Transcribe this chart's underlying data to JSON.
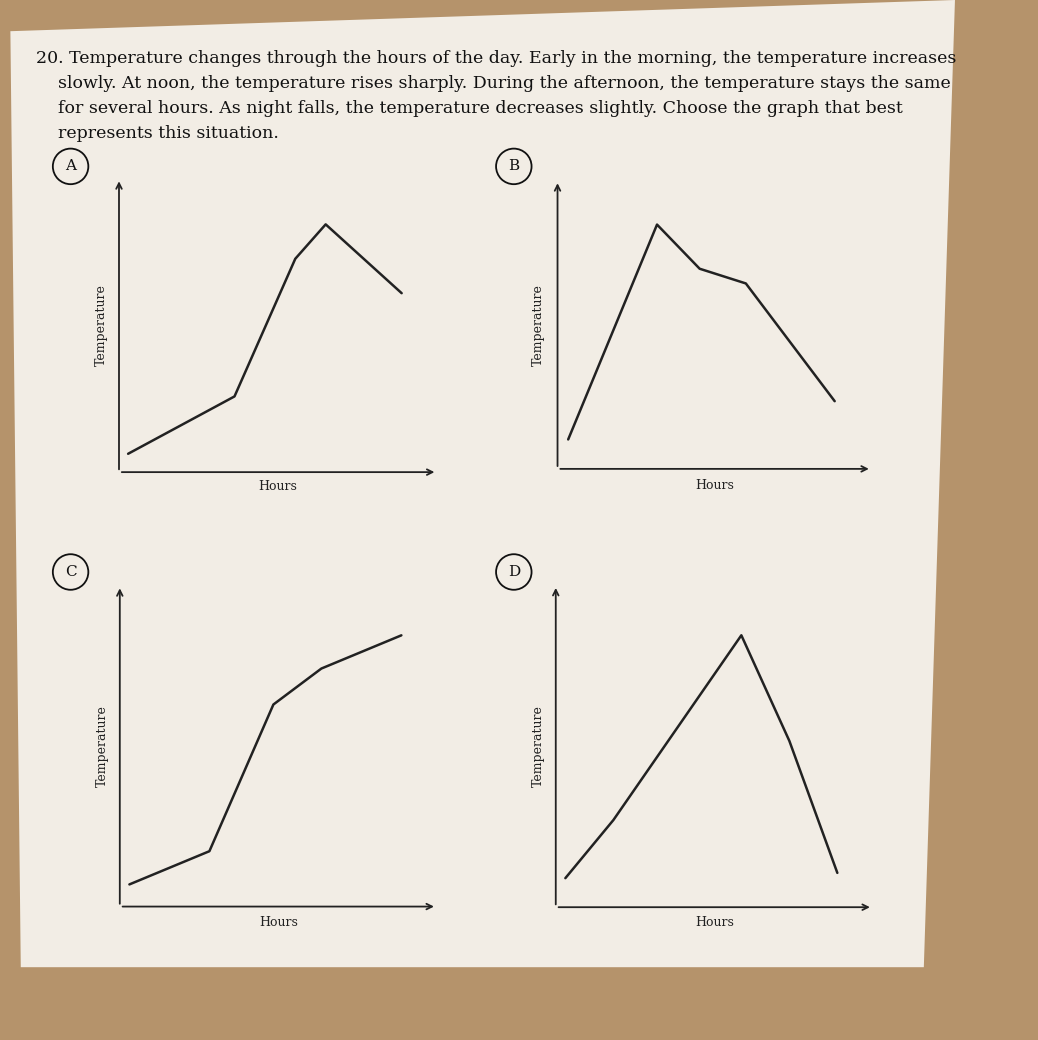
{
  "background_color": "#b5936b",
  "paper_color": "#f2ede5",
  "question_lines": [
    "20. Temperature changes through the hours of the day. Early in the morning, the temperature increases",
    "    slowly. At noon, the temperature rises sharply. During the afternoon, the temperature stays the same",
    "    for several hours. As night falls, the temperature decreases slightly. Choose the graph that best",
    "    represents this situation."
  ],
  "graphs": {
    "A": {
      "x": [
        0,
        3.5,
        5.5,
        6.5,
        9.0
      ],
      "y": [
        0,
        2.5,
        8.5,
        10.0,
        7.0
      ]
    },
    "B": {
      "x": [
        0.5,
        3.0,
        4.2,
        5.5,
        8.0
      ],
      "y": [
        0.2,
        7.5,
        6.0,
        5.5,
        1.5
      ]
    },
    "C": {
      "x": [
        0,
        2.5,
        4.5,
        6.0,
        8.5
      ],
      "y": [
        0,
        1.2,
        6.5,
        7.8,
        9.0
      ]
    },
    "D": {
      "x": [
        0,
        1.5,
        3.5,
        5.5,
        7.0,
        8.5
      ],
      "y": [
        0.3,
        2.5,
        6.0,
        9.5,
        5.5,
        0.5
      ]
    }
  },
  "line_color": "#222222",
  "line_width": 1.8,
  "axis_label_fontsize": 9,
  "circle_label_fontsize": 11,
  "question_fontsize": 12.5,
  "xlabel": "Hours",
  "ylabel": "Temperature"
}
